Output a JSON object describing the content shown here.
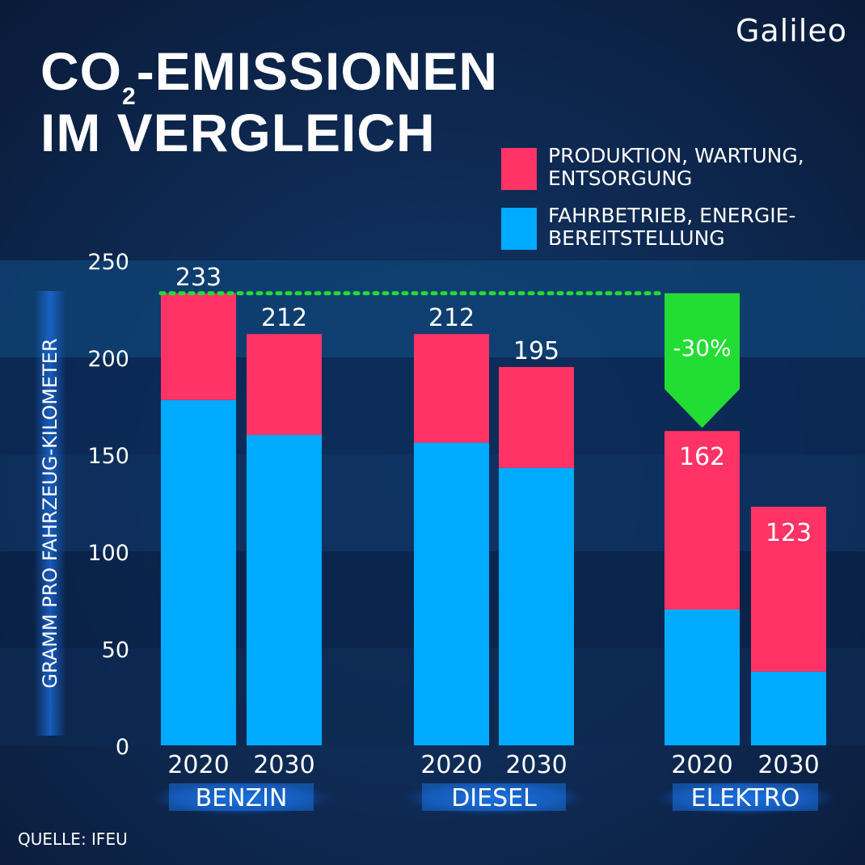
{
  "header": {
    "title_line1_pre": "CO",
    "title_sub": "2",
    "title_line1_post": "-EMISSIONEN",
    "title_line2": "IM VERGLEICH",
    "logo": "Galileo"
  },
  "legend": [
    {
      "label": "PRODUKTION, WARTUNG,\nENTSORGUNG",
      "color": "#ff3366"
    },
    {
      "label": "FAHRBETRIEB, ENERGIE-\nBEREITSTELLUNG",
      "color": "#00aaff"
    }
  ],
  "source": "QUELLE: IFEU",
  "colors": {
    "background": "#0b1f3f",
    "production": "#ff3366",
    "operation": "#00aaff",
    "highlight": "#22dd33"
  },
  "chart_data": {
    "type": "bar",
    "stacked": true,
    "ylabel": "GRAMM PRO FAHRZEUG-KILOMETER",
    "ylim": [
      0,
      250
    ],
    "yticks": [
      0,
      50,
      100,
      150,
      200,
      250
    ],
    "groups": [
      "BENZIN",
      "DIESEL",
      "ELEKTRO"
    ],
    "categories": [
      "2020",
      "2030",
      "2020",
      "2030",
      "2020",
      "2030"
    ],
    "category_group": [
      0,
      0,
      1,
      1,
      2,
      2
    ],
    "series": [
      {
        "name": "FAHRBETRIEB, ENERGIE-BEREITSTELLUNG",
        "values": [
          178,
          160,
          156,
          143,
          70,
          38
        ]
      },
      {
        "name": "PRODUKTION, WARTUNG, ENTSORGUNG",
        "values": [
          55,
          52,
          56,
          52,
          92,
          85
        ]
      }
    ],
    "totals": [
      233,
      212,
      212,
      195,
      162,
      123
    ],
    "total_labels": [
      "233",
      "212",
      "212",
      "195",
      "162",
      "123"
    ],
    "annotation": {
      "text": "-30%",
      "from_value": 233,
      "to_value": 162,
      "target_category": 4
    },
    "grid": false,
    "legend_position": "top-right"
  }
}
